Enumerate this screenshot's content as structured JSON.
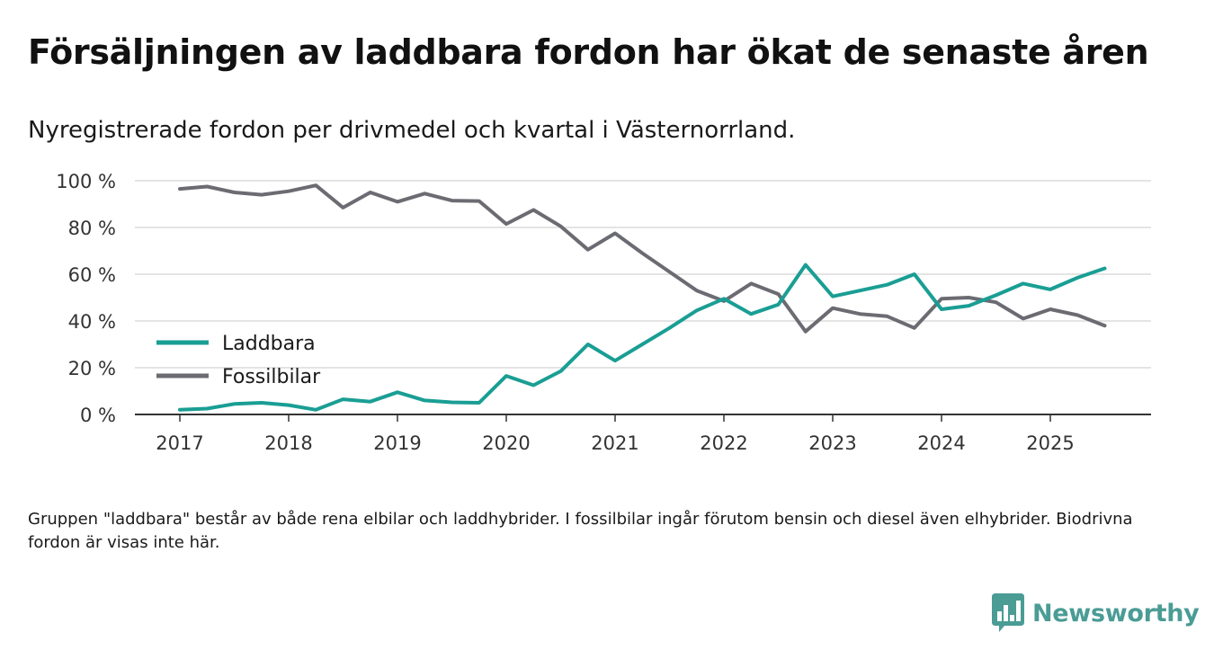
{
  "title": "Försäljningen av laddbara fordon har ökat de senaste åren",
  "subtitle": "Nyregistrerade fordon per drivmedel och kvartal i Västernorrland.",
  "note": "Gruppen \"laddbara\" består av både rena elbilar och laddhybrider. I fossilbilar ingår förutom bensin och diesel även elhybrider. Biodrivna fordon är visas inte här.",
  "logo": {
    "text": "Newsworthy",
    "icon": "bar-chart-badge-icon",
    "color": "#4a9c95"
  },
  "chart_data": {
    "type": "line",
    "title": "Försäljningen av laddbara fordon har ökat de senaste åren",
    "xlabel": "",
    "ylabel": "",
    "ylim": [
      0,
      100
    ],
    "xlim": [
      2017,
      2026
    ],
    "grid": true,
    "legend_position": "left-middle",
    "y_ticks": [
      {
        "value": 0,
        "label": "0 %"
      },
      {
        "value": 20,
        "label": "20 %"
      },
      {
        "value": 40,
        "label": "40 %"
      },
      {
        "value": 60,
        "label": "60 %"
      },
      {
        "value": 80,
        "label": "80 %"
      },
      {
        "value": 100,
        "label": "100 %"
      }
    ],
    "x_ticks": [
      {
        "value": 2017,
        "label": "2017"
      },
      {
        "value": 2018,
        "label": "2018"
      },
      {
        "value": 2019,
        "label": "2019"
      },
      {
        "value": 2020,
        "label": "2020"
      },
      {
        "value": 2021,
        "label": "2021"
      },
      {
        "value": 2022,
        "label": "2022"
      },
      {
        "value": 2023,
        "label": "2023"
      },
      {
        "value": 2024,
        "label": "2024"
      },
      {
        "value": 2025,
        "label": "2025"
      }
    ],
    "x": [
      2017.0,
      2017.25,
      2017.5,
      2017.75,
      2018.0,
      2018.25,
      2018.5,
      2018.75,
      2019.0,
      2019.25,
      2019.5,
      2019.75,
      2020.0,
      2020.25,
      2020.5,
      2020.75,
      2021.0,
      2021.25,
      2021.5,
      2021.75,
      2022.0,
      2022.25,
      2022.5,
      2022.75,
      2023.0,
      2023.25,
      2023.5,
      2023.75,
      2024.0,
      2024.25,
      2024.5,
      2024.75,
      2025.0,
      2025.25,
      2025.5
    ],
    "series": [
      {
        "name": "Laddbara",
        "color": "#1a9e94",
        "values": [
          2,
          2.5,
          4.5,
          5,
          4,
          2,
          6.5,
          5.5,
          9.5,
          6,
          5.2,
          5,
          16.5,
          12.5,
          18.5,
          30,
          23,
          30,
          37,
          44.5,
          49.5,
          43,
          47,
          64,
          50.5,
          53,
          55.5,
          60,
          45,
          46.5,
          51,
          56,
          53.5,
          58.5,
          62.5
        ]
      },
      {
        "name": "Fossilbilar",
        "color": "#6b6b72",
        "values": [
          96.5,
          97.5,
          95,
          94,
          95.5,
          98,
          88.5,
          95,
          91,
          94.5,
          91.5,
          91.3,
          81.5,
          87.5,
          80.5,
          70.5,
          77.5,
          69,
          61,
          53,
          48.5,
          56,
          51.5,
          35.5,
          45.5,
          43,
          42,
          37,
          49.5,
          50,
          48,
          41,
          45,
          42.5,
          38
        ]
      }
    ]
  }
}
